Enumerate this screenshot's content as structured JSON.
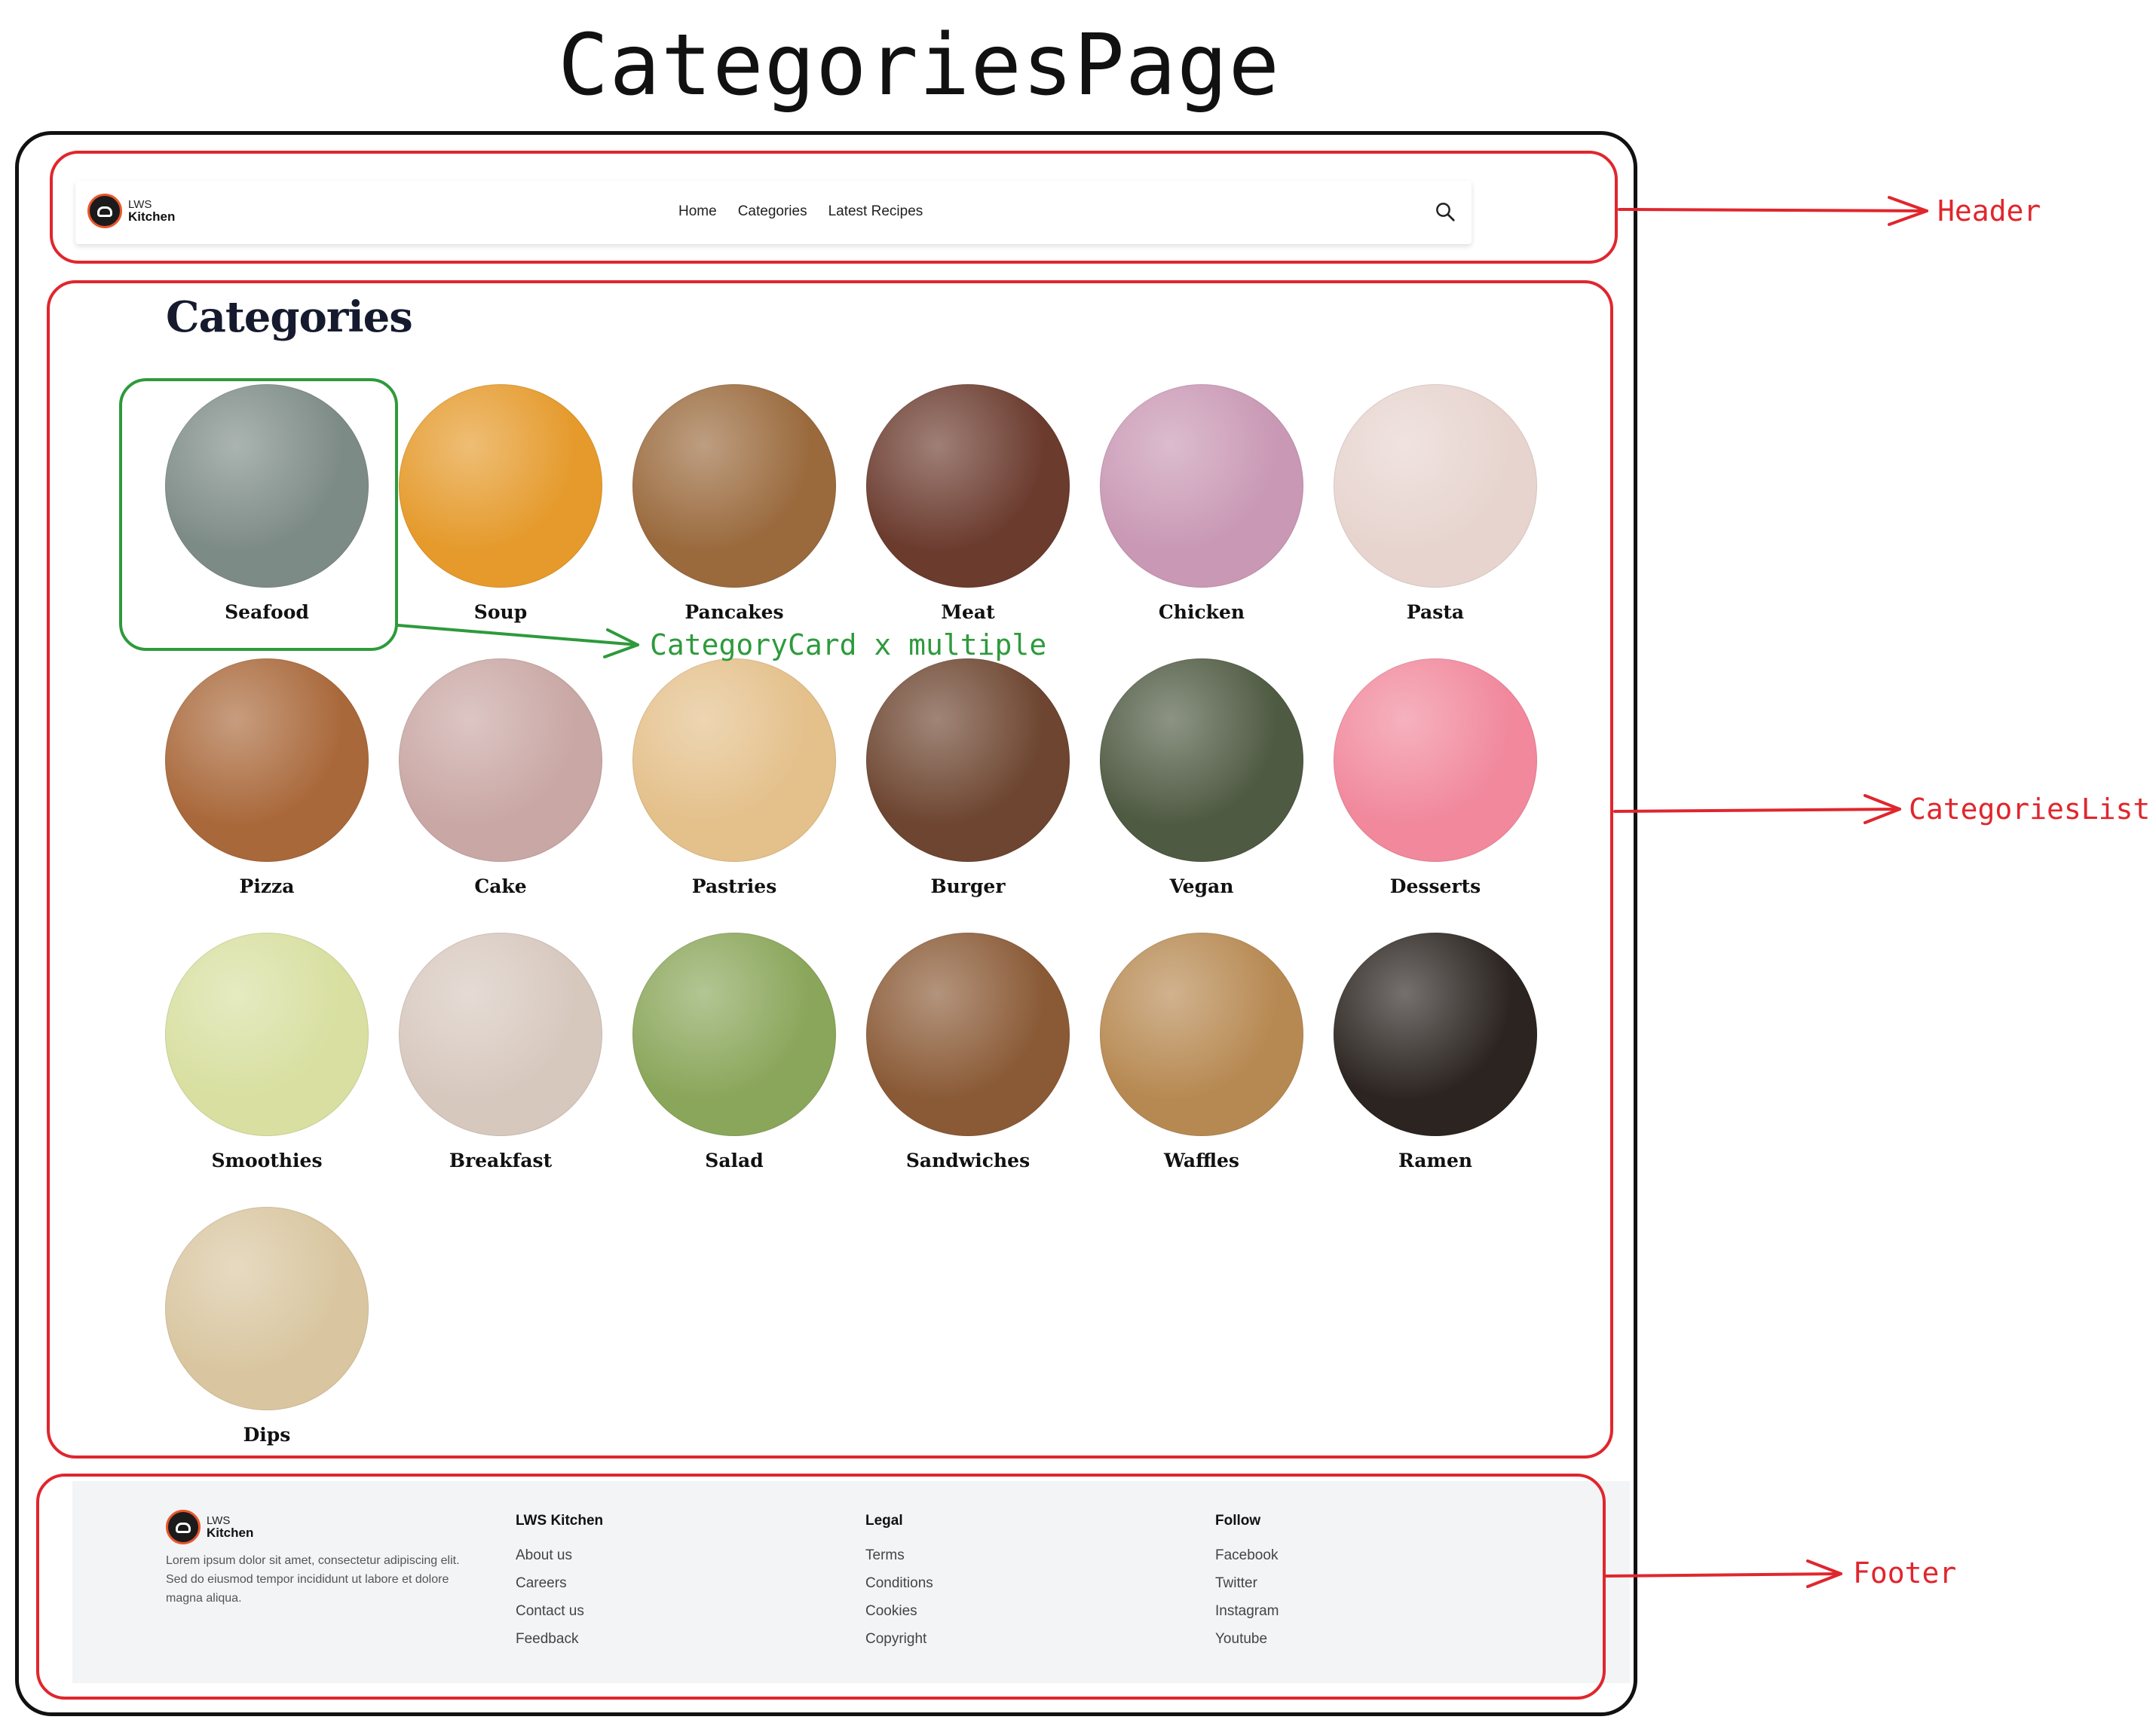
{
  "diagram": {
    "title": "CategoriesPage",
    "labels": {
      "header": "Header",
      "categories_list": "CategoriesList",
      "footer": "Footer",
      "category_card": "CategoryCard x multiple"
    }
  },
  "header": {
    "logo_small": "LWS",
    "logo_big": "Kitchen",
    "nav": [
      "Home",
      "Categories",
      "Latest Recipes"
    ],
    "icon": "search-icon"
  },
  "categories": {
    "heading": "Categories",
    "items": [
      {
        "name": "Seafood",
        "color": "#7d8b86"
      },
      {
        "name": "Soup",
        "color": "#e59a2b"
      },
      {
        "name": "Pancakes",
        "color": "#9a6a3d"
      },
      {
        "name": "Meat",
        "color": "#6b3b2e"
      },
      {
        "name": "Chicken",
        "color": "#c998b4"
      },
      {
        "name": "Pasta",
        "color": "#e7d4cf"
      },
      {
        "name": "Pizza",
        "color": "#a9683a"
      },
      {
        "name": "Cake",
        "color": "#c9a7a4"
      },
      {
        "name": "Pastries",
        "color": "#e4c08a"
      },
      {
        "name": "Burger",
        "color": "#6d4530"
      },
      {
        "name": "Vegan",
        "color": "#4f5a42"
      },
      {
        "name": "Desserts",
        "color": "#f1889c"
      },
      {
        "name": "Smoothies",
        "color": "#d8dfa0"
      },
      {
        "name": "Breakfast",
        "color": "#d7c8be"
      },
      {
        "name": "Salad",
        "color": "#8aa65a"
      },
      {
        "name": "Sandwiches",
        "color": "#8a5a36"
      },
      {
        "name": "Waffles",
        "color": "#b78952"
      },
      {
        "name": "Ramen",
        "color": "#2b2420"
      },
      {
        "name": "Dips",
        "color": "#d9c6a0"
      }
    ]
  },
  "footer": {
    "logo_small": "LWS",
    "logo_big": "Kitchen",
    "description": "Lorem ipsum dolor sit amet, consectetur adipiscing elit. Sed do eiusmod tempor incididunt ut labore et dolore magna aliqua.",
    "columns": [
      {
        "title": "LWS Kitchen",
        "links": [
          "About us",
          "Careers",
          "Contact us",
          "Feedback"
        ]
      },
      {
        "title": "Legal",
        "links": [
          "Terms",
          "Conditions",
          "Cookies",
          "Copyright"
        ]
      },
      {
        "title": "Follow",
        "links": [
          "Facebook",
          "Twitter",
          "Instagram",
          "Youtube"
        ]
      }
    ]
  },
  "colors": {
    "annotation_red": "#e0262d",
    "annotation_green": "#2e9a3c",
    "heading_navy": "#151a2e",
    "footer_bg": "#f3f4f6"
  }
}
